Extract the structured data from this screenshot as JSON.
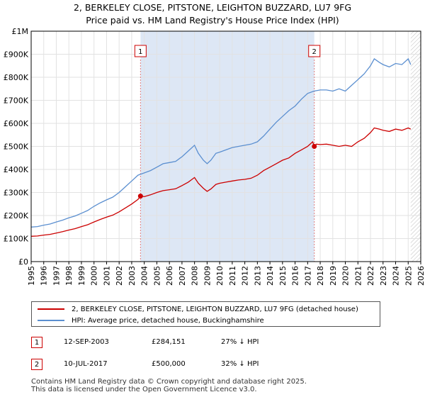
{
  "title_line1": "2, BERKELEY CLOSE, PITSTONE, LEIGHTON BUZZARD, LU7 9FG",
  "title_line2": "Price paid vs. HM Land Registry's House Price Index (HPI)",
  "colors": {
    "property": "#cc0000",
    "hpi": "#5b8fd0",
    "shade": "#dde7f5",
    "grid": "#e2e2e2",
    "marker_line": "#e08080"
  },
  "legend": {
    "property": "2, BERKELEY CLOSE, PITSTONE, LEIGHTON BUZZARD, LU7 9FG (detached house)",
    "hpi": "HPI: Average price, detached house, Buckinghamshire"
  },
  "transactions": [
    {
      "num": "1",
      "date": "12-SEP-2003",
      "price": "£284,151",
      "hpi_diff": "27% ↓ HPI"
    },
    {
      "num": "2",
      "date": "10-JUL-2017",
      "price": "£500,000",
      "hpi_diff": "32% ↓ HPI"
    }
  ],
  "footer_line1": "Contains HM Land Registry data © Crown copyright and database right 2025.",
  "footer_line2": "This data is licensed under the Open Government Licence v3.0.",
  "chart_data": {
    "type": "line",
    "xlim": [
      1995,
      2026
    ],
    "ylim": [
      0,
      1000000
    ],
    "ytick_values": [
      0,
      100000,
      200000,
      300000,
      400000,
      500000,
      600000,
      700000,
      800000,
      900000,
      1000000
    ],
    "ytick_labels": [
      "£0",
      "£100K",
      "£200K",
      "£300K",
      "£400K",
      "£500K",
      "£600K",
      "£700K",
      "£800K",
      "£900K",
      "£1M"
    ],
    "xtick_values": [
      1995,
      1996,
      1997,
      1998,
      1999,
      2000,
      2001,
      2002,
      2003,
      2004,
      2005,
      2006,
      2007,
      2008,
      2009,
      2010,
      2011,
      2012,
      2013,
      2014,
      2015,
      2016,
      2017,
      2018,
      2019,
      2020,
      2021,
      2022,
      2023,
      2024,
      2025,
      2026
    ],
    "xtick_labels": [
      "1995",
      "1996",
      "1997",
      "1998",
      "1999",
      "2000",
      "2001",
      "2002",
      "2003",
      "2004",
      "2005",
      "2006",
      "2007",
      "2008",
      "2009",
      "2010",
      "2011",
      "2012",
      "2013",
      "2014",
      "2015",
      "2016",
      "2017",
      "2018",
      "2019",
      "2020",
      "2021",
      "2022",
      "2023",
      "2024",
      "2025",
      "2026"
    ],
    "shaded_range": [
      2003.7,
      2017.53
    ],
    "future_hatch_start": 2025.2,
    "markers": [
      {
        "label": "1",
        "x": 2003.7,
        "y": 284151
      },
      {
        "label": "2",
        "x": 2017.53,
        "y": 500000
      }
    ],
    "series": [
      {
        "name": "HPI: Average price, detached house, Buckinghamshire",
        "color": "#5b8fd0",
        "x": [
          1995,
          1995.5,
          1996,
          1996.5,
          1997,
          1997.5,
          1998,
          1998.5,
          1999,
          1999.5,
          2000,
          2000.5,
          2001,
          2001.5,
          2002,
          2002.5,
          2003,
          2003.5,
          2004,
          2004.5,
          2005,
          2005.5,
          2006,
          2006.5,
          2007,
          2007.5,
          2008,
          2008.3,
          2008.7,
          2009,
          2009.3,
          2009.7,
          2010,
          2010.5,
          2011,
          2011.5,
          2012,
          2012.5,
          2013,
          2013.5,
          2014,
          2014.5,
          2015,
          2015.5,
          2016,
          2016.5,
          2017,
          2017.5,
          2018,
          2018.5,
          2019,
          2019.5,
          2020,
          2020.5,
          2021,
          2021.5,
          2022,
          2022.3,
          2022.7,
          2023,
          2023.5,
          2024,
          2024.5,
          2025,
          2025.2
        ],
        "y": [
          150000,
          152000,
          158000,
          163000,
          172000,
          180000,
          190000,
          198000,
          210000,
          222000,
          240000,
          255000,
          268000,
          280000,
          300000,
          325000,
          350000,
          375000,
          385000,
          395000,
          410000,
          425000,
          430000,
          435000,
          455000,
          480000,
          505000,
          470000,
          440000,
          425000,
          440000,
          470000,
          475000,
          485000,
          495000,
          500000,
          505000,
          510000,
          520000,
          545000,
          575000,
          605000,
          630000,
          655000,
          675000,
          705000,
          730000,
          740000,
          745000,
          745000,
          740000,
          750000,
          740000,
          765000,
          790000,
          815000,
          850000,
          880000,
          865000,
          855000,
          845000,
          860000,
          855000,
          880000,
          855000
        ]
      },
      {
        "name": "2, BERKELEY CLOSE, PITSTONE, LEIGHTON BUZZARD, LU7 9FG (detached house)",
        "color": "#cc0000",
        "x": [
          1995,
          1995.5,
          1996,
          1996.5,
          1997,
          1997.5,
          1998,
          1998.5,
          1999,
          1999.5,
          2000,
          2000.5,
          2001,
          2001.5,
          2002,
          2002.5,
          2003,
          2003.5,
          2003.7,
          2004,
          2004.5,
          2005,
          2005.5,
          2006,
          2006.5,
          2007,
          2007.5,
          2008,
          2008.3,
          2008.7,
          2009,
          2009.3,
          2009.7,
          2010,
          2010.5,
          2011,
          2011.5,
          2012,
          2012.5,
          2013,
          2013.5,
          2014,
          2014.5,
          2015,
          2015.5,
          2016,
          2016.5,
          2017,
          2017.4,
          2017.53,
          2017.7,
          2018,
          2018.5,
          2019,
          2019.5,
          2020,
          2020.5,
          2021,
          2021.5,
          2022,
          2022.3,
          2022.7,
          2023,
          2023.5,
          2024,
          2024.5,
          2025,
          2025.2
        ],
        "y": [
          110000,
          111000,
          115000,
          118000,
          124000,
          130000,
          137000,
          143000,
          152000,
          160000,
          172000,
          183000,
          193000,
          202000,
          216000,
          233000,
          250000,
          270000,
          284151,
          282000,
          290000,
          300000,
          308000,
          312000,
          316000,
          330000,
          345000,
          365000,
          340000,
          318000,
          305000,
          315000,
          335000,
          340000,
          345000,
          350000,
          354000,
          357000,
          362000,
          375000,
          395000,
          410000,
          425000,
          440000,
          450000,
          470000,
          485000,
          500000,
          520000,
          500000,
          510000,
          508000,
          510000,
          505000,
          500000,
          505000,
          500000,
          520000,
          535000,
          560000,
          580000,
          575000,
          570000,
          565000,
          575000,
          570000,
          580000,
          575000
        ]
      }
    ]
  }
}
